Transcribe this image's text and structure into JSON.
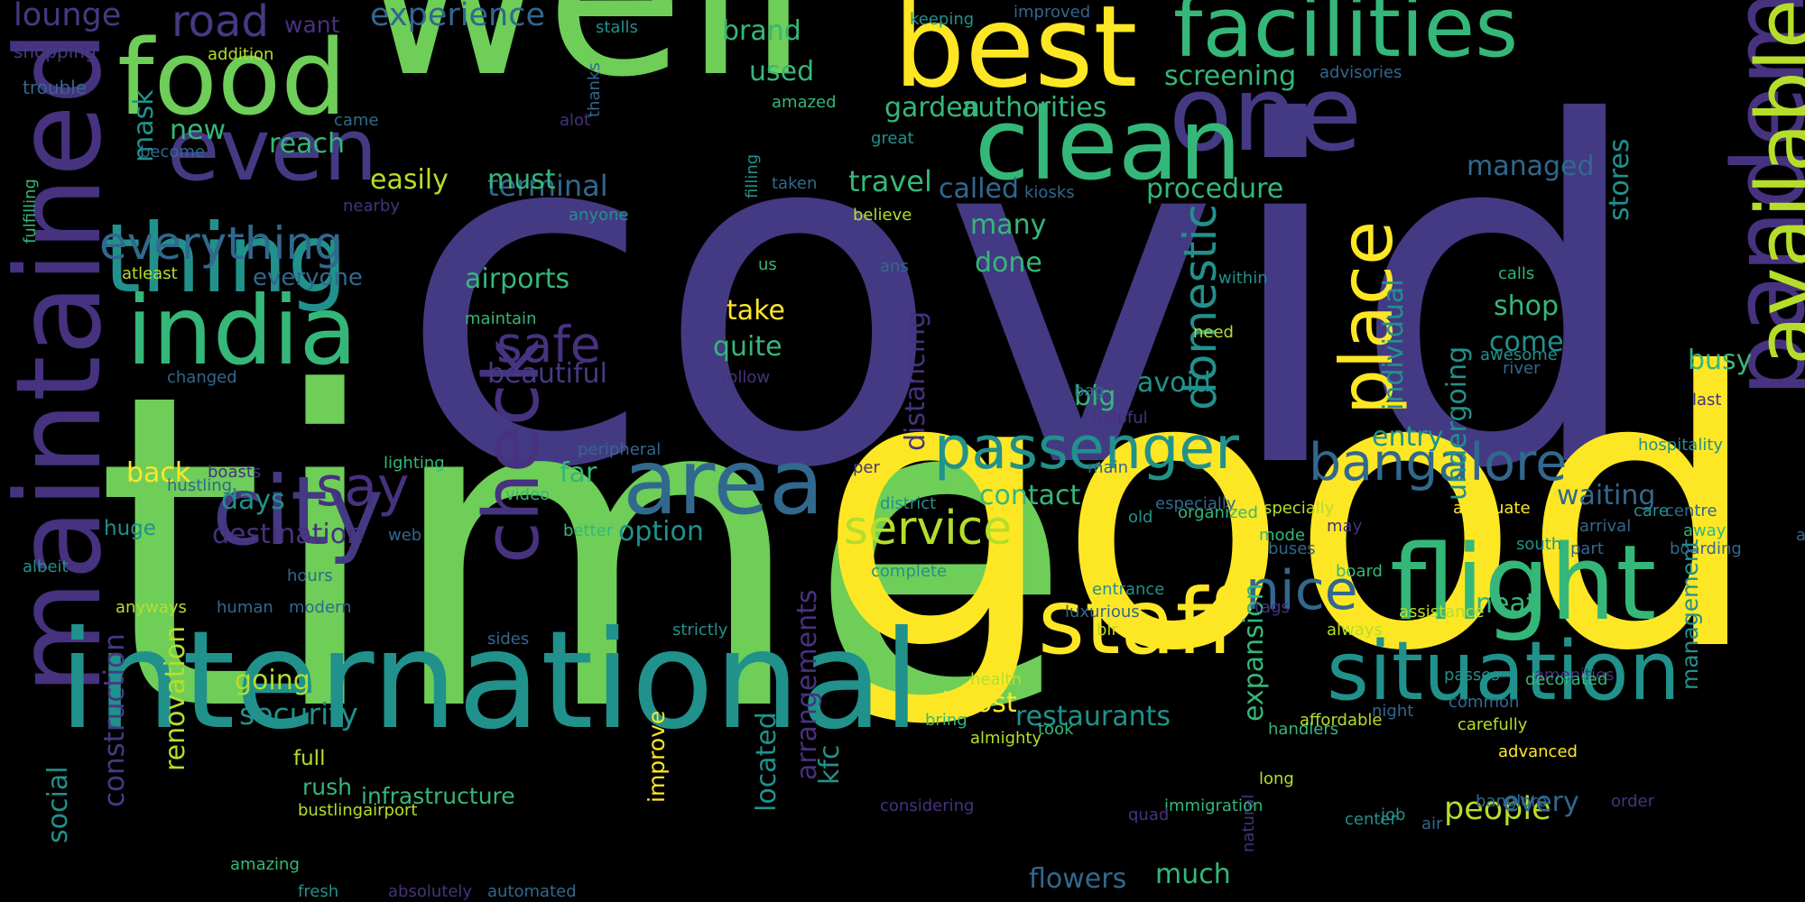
{
  "background": "#000000",
  "palette": {
    "indigo": "#443A83",
    "purple": "#46327E",
    "blue": "#31688E",
    "teal": "#21918C",
    "seagreen": "#35B779",
    "green": "#6ECE58",
    "lime": "#B5DE2B",
    "yellow": "#FDE725"
  },
  "words": [
    {
      "text": "covid",
      "color": "#443A83"
    },
    {
      "text": "time",
      "color": "#6ECE58"
    },
    {
      "text": "good",
      "color": "#FDE725"
    },
    {
      "text": "well",
      "color": "#6ECE58"
    },
    {
      "text": "maintained",
      "color": "#46327E"
    },
    {
      "text": "international",
      "color": "#21918C"
    },
    {
      "text": "best",
      "color": "#FDE725"
    },
    {
      "text": "facilities",
      "color": "#35B779"
    },
    {
      "text": "food",
      "color": "#6ECE58"
    },
    {
      "text": "one",
      "color": "#443A83"
    },
    {
      "text": "clean",
      "color": "#35B779"
    },
    {
      "text": "pandemic",
      "color": "#46327E"
    },
    {
      "text": "available",
      "color": "#B5DE2B"
    },
    {
      "text": "even",
      "color": "#443A83"
    },
    {
      "text": "thing",
      "color": "#21918C"
    },
    {
      "text": "india",
      "color": "#35B779"
    },
    {
      "text": "city",
      "color": "#443A83"
    },
    {
      "text": "area",
      "color": "#31688E"
    },
    {
      "text": "check",
      "color": "#46327E"
    },
    {
      "text": "place",
      "color": "#FDE725"
    },
    {
      "text": "flight",
      "color": "#35B779"
    },
    {
      "text": "staff",
      "color": "#FDE725"
    },
    {
      "text": "situation",
      "color": "#21918C"
    },
    {
      "text": "passenger",
      "color": "#21918C"
    },
    {
      "text": "bangalore",
      "color": "#31688E"
    },
    {
      "text": "service",
      "color": "#B5DE2B"
    },
    {
      "text": "safe",
      "color": "#46327E"
    },
    {
      "text": "say",
      "color": "#46327E"
    },
    {
      "text": "nice",
      "color": "#31688E"
    },
    {
      "text": "everything",
      "color": "#31688E"
    },
    {
      "text": "road",
      "color": "#443A83"
    },
    {
      "text": "lounge",
      "color": "#443A83"
    },
    {
      "text": "experience",
      "color": "#31688E"
    },
    {
      "text": "domestic",
      "color": "#21918C"
    },
    {
      "text": "individual",
      "color": "#21918C"
    },
    {
      "text": "construction",
      "color": "#443A83"
    },
    {
      "text": "arrangements",
      "color": "#46327E"
    },
    {
      "text": "undergoing",
      "color": "#21918C"
    },
    {
      "text": "distancing",
      "color": "#46327E"
    },
    {
      "text": "people",
      "color": "#B5DE2B"
    },
    {
      "text": "security",
      "color": "#21918C"
    },
    {
      "text": "destination",
      "color": "#46327E"
    },
    {
      "text": "option",
      "color": "#21918C"
    },
    {
      "text": "restaurants",
      "color": "#21918C"
    },
    {
      "text": "terminal",
      "color": "#31688E"
    },
    {
      "text": "travel",
      "color": "#35B779"
    },
    {
      "text": "managed",
      "color": "#31688E"
    },
    {
      "text": "airports",
      "color": "#35B779"
    },
    {
      "text": "screening",
      "color": "#35B779"
    },
    {
      "text": "authorities",
      "color": "#35B779"
    },
    {
      "text": "beautiful",
      "color": "#443A83"
    },
    {
      "text": "stores",
      "color": "#21918C"
    },
    {
      "text": "reach",
      "color": "#35B779"
    },
    {
      "text": "easily",
      "color": "#B5DE2B"
    },
    {
      "text": "must",
      "color": "#35B779"
    },
    {
      "text": "called",
      "color": "#31688E"
    },
    {
      "text": "garden",
      "color": "#35B779"
    },
    {
      "text": "procedure",
      "color": "#35B779"
    },
    {
      "text": "many",
      "color": "#35B779"
    },
    {
      "text": "done",
      "color": "#35B779"
    },
    {
      "text": "avoid",
      "color": "#21918C"
    },
    {
      "text": "big",
      "color": "#35B779"
    },
    {
      "text": "shop",
      "color": "#35B779"
    },
    {
      "text": "come",
      "color": "#21918C"
    },
    {
      "text": "busy",
      "color": "#35B779"
    },
    {
      "text": "take",
      "color": "#FDE725"
    },
    {
      "text": "quite",
      "color": "#35B779"
    },
    {
      "text": "everyone",
      "color": "#31688E"
    },
    {
      "text": "brand",
      "color": "#35B779"
    },
    {
      "text": "used",
      "color": "#35B779"
    },
    {
      "text": "new",
      "color": "#35B779"
    },
    {
      "text": "mask",
      "color": "#21918C"
    },
    {
      "text": "back",
      "color": "#FDE725"
    },
    {
      "text": "days",
      "color": "#21918C"
    },
    {
      "text": "far",
      "color": "#35B779"
    },
    {
      "text": "contact",
      "color": "#35B779"
    },
    {
      "text": "entry",
      "color": "#21918C"
    },
    {
      "text": "waiting",
      "color": "#31688E"
    },
    {
      "text": "neat",
      "color": "#35B779"
    },
    {
      "text": "every",
      "color": "#31688E"
    },
    {
      "text": "almost",
      "color": "#FDE725"
    },
    {
      "text": "going",
      "color": "#B5DE2B"
    },
    {
      "text": "located",
      "color": "#21918C"
    },
    {
      "text": "renovation",
      "color": "#B5DE2B"
    },
    {
      "text": "improve",
      "color": "#FDE725"
    },
    {
      "text": "flowers",
      "color": "#31688E"
    },
    {
      "text": "much",
      "color": "#35B779"
    },
    {
      "text": "expansion",
      "color": "#35B779"
    },
    {
      "text": "social",
      "color": "#21918C"
    },
    {
      "text": "kfc",
      "color": "#21918C"
    },
    {
      "text": "infrastructure",
      "color": "#35B779"
    },
    {
      "text": "rush",
      "color": "#35B779"
    },
    {
      "text": "full",
      "color": "#B5DE2B"
    },
    {
      "text": "huge",
      "color": "#21918C"
    },
    {
      "text": "management",
      "color": "#21918C"
    },
    {
      "text": "want",
      "color": "#46327E"
    },
    {
      "text": "shopping",
      "color": "#443A83"
    },
    {
      "text": "trouble",
      "color": "#31688E"
    },
    {
      "text": "addition",
      "color": "#B5DE2B"
    },
    {
      "text": "stalls",
      "color": "#21918C"
    },
    {
      "text": "keeping",
      "color": "#21918C"
    },
    {
      "text": "improved",
      "color": "#31688E"
    },
    {
      "text": "advisories",
      "color": "#31688E"
    },
    {
      "text": "amazed",
      "color": "#35B779"
    },
    {
      "text": "great",
      "color": "#21918C"
    },
    {
      "text": "filling",
      "color": "#21918C"
    },
    {
      "text": "thanks",
      "color": "#31688E"
    },
    {
      "text": "alot",
      "color": "#46327E"
    },
    {
      "text": "came",
      "color": "#31688E"
    },
    {
      "text": "become",
      "color": "#31688E"
    },
    {
      "text": "fulfilling",
      "color": "#35B779"
    },
    {
      "text": "nearby",
      "color": "#46327E"
    },
    {
      "text": "anyone",
      "color": "#21918C"
    },
    {
      "text": "taken",
      "color": "#31688E"
    },
    {
      "text": "believe",
      "color": "#B5DE2B"
    },
    {
      "text": "kiosks",
      "color": "#31688E"
    },
    {
      "text": "atleast",
      "color": "#B5DE2B"
    },
    {
      "text": "maintain",
      "color": "#35B779"
    },
    {
      "text": "changed",
      "color": "#31688E"
    },
    {
      "text": "follow",
      "color": "#46327E"
    },
    {
      "text": "us",
      "color": "#35B779"
    },
    {
      "text": "ans",
      "color": "#31688E"
    },
    {
      "text": "within",
      "color": "#21918C"
    },
    {
      "text": "need",
      "color": "#B5DE2B"
    },
    {
      "text": "awesome",
      "color": "#21918C"
    },
    {
      "text": "river",
      "color": "#31688E"
    },
    {
      "text": "calls",
      "color": "#35B779"
    },
    {
      "text": "bag",
      "color": "#31688E"
    },
    {
      "text": "helpful",
      "color": "#46327E"
    },
    {
      "text": "last",
      "color": "#46327E"
    },
    {
      "text": "hospitality",
      "color": "#21918C"
    },
    {
      "text": "lighting",
      "color": "#35B779"
    },
    {
      "text": "peripheral",
      "color": "#31688E"
    },
    {
      "text": "boasts",
      "color": "#46327E"
    },
    {
      "text": "hustling",
      "color": "#31688E"
    },
    {
      "text": "main",
      "color": "#31688E"
    },
    {
      "text": "video",
      "color": "#35B779"
    },
    {
      "text": "per",
      "color": "#46327E"
    },
    {
      "text": "district",
      "color": "#21918C"
    },
    {
      "text": "especially",
      "color": "#31688E"
    },
    {
      "text": "old",
      "color": "#21918C"
    },
    {
      "text": "organized",
      "color": "#35B779"
    },
    {
      "text": "specially",
      "color": "#B5DE2B"
    },
    {
      "text": "adequate",
      "color": "#FDE725"
    },
    {
      "text": "centre",
      "color": "#31688E"
    },
    {
      "text": "ambience",
      "color": "#31688E"
    },
    {
      "text": "away",
      "color": "#35B779"
    },
    {
      "text": "boarding",
      "color": "#31688E"
    },
    {
      "text": "care",
      "color": "#21918C"
    },
    {
      "text": "arrival",
      "color": "#31688E"
    },
    {
      "text": "south",
      "color": "#21918C"
    },
    {
      "text": "passes",
      "color": "#21918C"
    },
    {
      "text": "web",
      "color": "#31688E"
    },
    {
      "text": "better",
      "color": "#35B779"
    },
    {
      "text": "mode",
      "color": "#35B779"
    },
    {
      "text": "buses",
      "color": "#31688E"
    },
    {
      "text": "may",
      "color": "#46327E"
    },
    {
      "text": "board",
      "color": "#35B779"
    },
    {
      "text": "part",
      "color": "#31688E"
    },
    {
      "text": "albeit",
      "color": "#21918C"
    },
    {
      "text": "hours",
      "color": "#31688E"
    },
    {
      "text": "anyways",
      "color": "#B5DE2B"
    },
    {
      "text": "human",
      "color": "#31688E"
    },
    {
      "text": "modern",
      "color": "#31688E"
    },
    {
      "text": "entrance",
      "color": "#21918C"
    },
    {
      "text": "tags",
      "color": "#46327E"
    },
    {
      "text": "luxurious",
      "color": "#31688E"
    },
    {
      "text": "assistance",
      "color": "#B5DE2B"
    },
    {
      "text": "always",
      "color": "#B5DE2B"
    },
    {
      "text": "common",
      "color": "#31688E"
    },
    {
      "text": "blr",
      "color": "#B5DE2B"
    },
    {
      "text": "amenities",
      "color": "#46327E"
    },
    {
      "text": "decorated",
      "color": "#35B779"
    },
    {
      "text": "night",
      "color": "#31688E"
    },
    {
      "text": "carefully",
      "color": "#B5DE2B"
    },
    {
      "text": "bring",
      "color": "#35B779"
    },
    {
      "text": "center",
      "color": "#21918C"
    },
    {
      "text": "long",
      "color": "#B5DE2B"
    },
    {
      "text": "strictly",
      "color": "#21918C"
    },
    {
      "text": "natural",
      "color": "#46327E"
    },
    {
      "text": "almighty",
      "color": "#B5DE2B"
    },
    {
      "text": "handlers",
      "color": "#35B779"
    },
    {
      "text": "affordable",
      "color": "#B5DE2B"
    },
    {
      "text": "advanced",
      "color": "#FDE725"
    },
    {
      "text": "complete",
      "color": "#21918C"
    },
    {
      "text": "health",
      "color": "#B5DE2B"
    },
    {
      "text": "took",
      "color": "#35B779"
    },
    {
      "text": "order",
      "color": "#46327E"
    },
    {
      "text": "banglore",
      "color": "#31688E"
    },
    {
      "text": "sides",
      "color": "#31688E"
    },
    {
      "text": "considering",
      "color": "#46327E"
    },
    {
      "text": "immigration",
      "color": "#35B779"
    },
    {
      "text": "quad",
      "color": "#46327E"
    },
    {
      "text": "job",
      "color": "#21918C"
    },
    {
      "text": "air",
      "color": "#31688E"
    },
    {
      "text": "bustlingairport",
      "color": "#B5DE2B"
    },
    {
      "text": "amazing",
      "color": "#35B779"
    },
    {
      "text": "fresh",
      "color": "#21918C"
    },
    {
      "text": "absolutely",
      "color": "#46327E"
    },
    {
      "text": "automated",
      "color": "#31688E"
    }
  ]
}
